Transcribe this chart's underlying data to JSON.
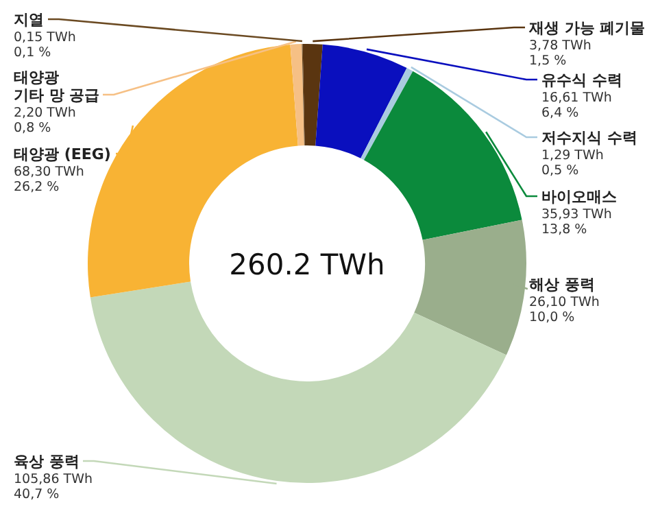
{
  "chart_data": {
    "type": "donut",
    "categories": [
      "재생 가능 폐기물",
      "유수식 수력",
      "저수지식 수력",
      "바이오매스",
      "해상 풍력",
      "육상 풍력",
      "태양광 (EEG)",
      "태양광 기타 망 공급",
      "지열"
    ],
    "values": [
      3.78,
      16.61,
      1.29,
      35.93,
      26.1,
      105.86,
      68.3,
      2.2,
      0.15
    ],
    "value_labels": [
      "3,78 TWh\n1,5 %",
      "16,61 TWh\n6,4 %",
      "1,29 TWh\n0,5 %",
      "35,93 TWh\n13,8 %",
      "26,10 TWh\n10,0 %",
      "105,86 TWh\n40,7 %",
      "68,30 TWh\n26,2 %",
      "2,20 TWh\n0,8 %",
      "0,15 TWh\n0,1 %"
    ],
    "colors": [
      "#5a3510",
      "#0a0fbe",
      "#a9cbe0",
      "#0b8a3c",
      "#9aae8c",
      "#c3d8b8",
      "#f8b334",
      "#f6c085",
      "#6b4a22"
    ],
    "annotations": [
      "260.2 TWh"
    ]
  }
}
